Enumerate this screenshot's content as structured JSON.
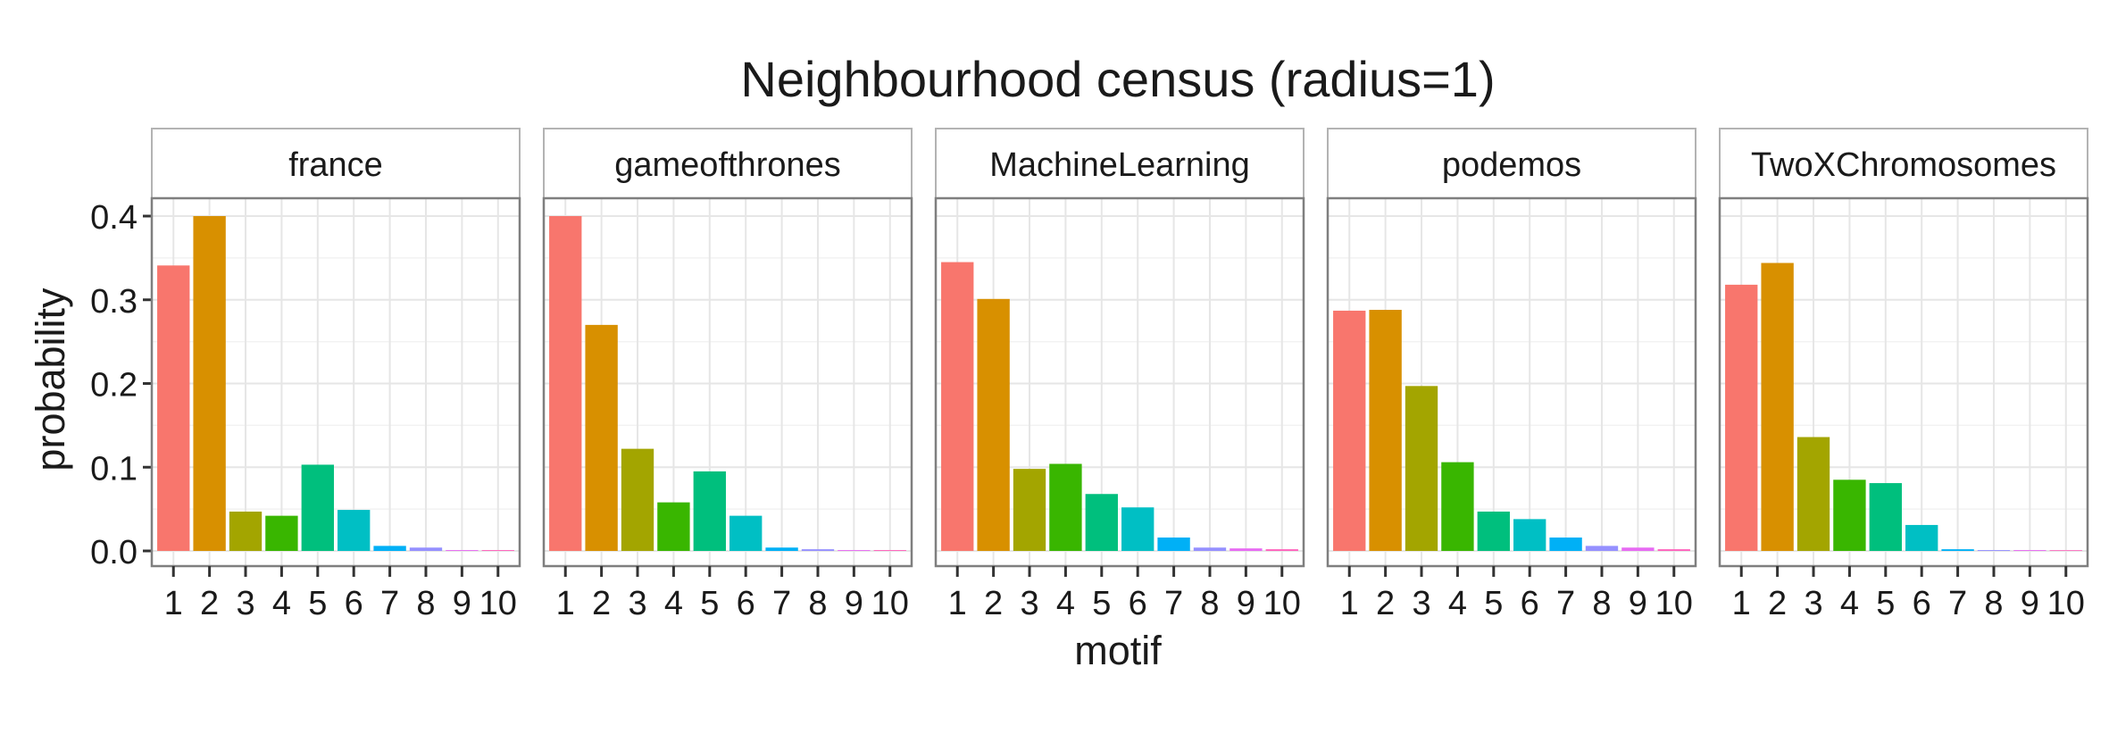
{
  "chart_data": {
    "type": "bar",
    "title": "Neighbourhood census (radius=1)",
    "xlabel": "motif",
    "ylabel": "probability",
    "ylim": [
      -0.02,
      0.4
    ],
    "yticks": [
      "0.0",
      "0.1",
      "0.2",
      "0.3",
      "0.4"
    ],
    "yticks_values": [
      0.0,
      0.1,
      0.2,
      0.3,
      0.4
    ],
    "categories": [
      "1",
      "2",
      "3",
      "4",
      "5",
      "6",
      "7",
      "8",
      "9",
      "10"
    ],
    "grid": true,
    "colors": [
      "#F8766D",
      "#D89000",
      "#A3A500",
      "#39B600",
      "#00BF7D",
      "#00BFC4",
      "#00B0F6",
      "#9590FF",
      "#E76BF3",
      "#FF62BC"
    ],
    "facets": [
      {
        "name": "france",
        "values": [
          0.341,
          0.4,
          0.047,
          0.042,
          0.103,
          0.049,
          0.006,
          0.004,
          0.001,
          0.001
        ]
      },
      {
        "name": "gameofthrones",
        "values": [
          0.4,
          0.27,
          0.122,
          0.058,
          0.095,
          0.042,
          0.004,
          0.002,
          0.001,
          0.001
        ]
      },
      {
        "name": "MachineLearning",
        "values": [
          0.345,
          0.301,
          0.098,
          0.104,
          0.068,
          0.052,
          0.016,
          0.004,
          0.003,
          0.002
        ]
      },
      {
        "name": "podemos",
        "values": [
          0.287,
          0.288,
          0.197,
          0.106,
          0.047,
          0.038,
          0.016,
          0.006,
          0.004,
          0.002
        ]
      },
      {
        "name": "TwoXChromosomes",
        "values": [
          0.318,
          0.344,
          0.136,
          0.085,
          0.081,
          0.031,
          0.002,
          0.001,
          0.001,
          0.0
        ]
      }
    ]
  }
}
